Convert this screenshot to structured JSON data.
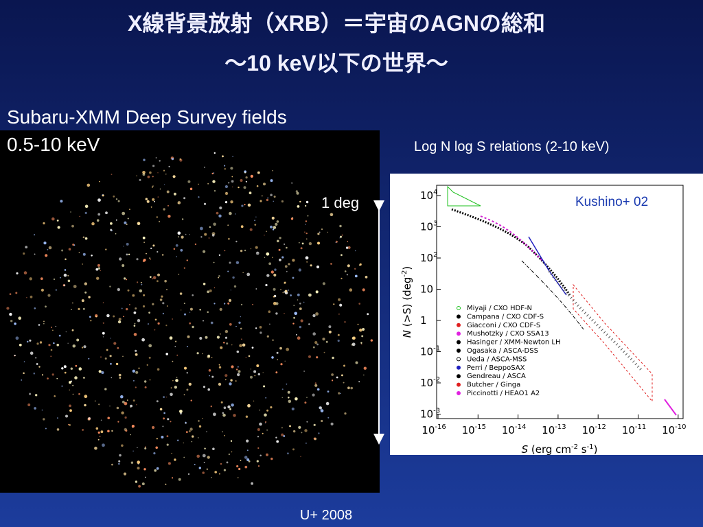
{
  "header": {
    "title": [
      "X線背景放射（XRB）＝宇宙のAGNの総和",
      "～10 keV以下の世界～"
    ]
  },
  "image": {
    "caption": [
      "Subaru-XMM Deep Survey fields",
      "0.5-10 keV"
    ],
    "scale": "1 deg"
  },
  "figure": {
    "caption": "Log N log S relations (2-10 keV)",
    "annotation": "Kushino+ 02",
    "ylabel": {
      "var": "N",
      "rest": " (>S) (deg",
      "exp": "-2",
      "close": ")"
    },
    "xlabel": {
      "var": "S",
      "rest": " (erg cm",
      "exp1": "-2",
      "mid": " s",
      "exp2": "-1",
      "close": ")"
    },
    "yticks": [
      {
        "base": "10",
        "exp": "4"
      },
      {
        "base": "10",
        "exp": "3"
      },
      {
        "base": "10",
        "exp": "2"
      },
      {
        "base": "10",
        "exp": ""
      },
      {
        "base": "1",
        "exp": ""
      },
      {
        "base": "10",
        "exp": "-1"
      },
      {
        "base": "10",
        "exp": "-2"
      },
      {
        "base": "10",
        "exp": "-3"
      }
    ],
    "xticks": [
      {
        "base": "10",
        "exp": "-16"
      },
      {
        "base": "10",
        "exp": "-15"
      },
      {
        "base": "10",
        "exp": "-14"
      },
      {
        "base": "10",
        "exp": "-13"
      },
      {
        "base": "10",
        "exp": "-12"
      },
      {
        "base": "10",
        "exp": "-11"
      },
      {
        "base": "10",
        "exp": "-10"
      }
    ],
    "legend": [
      "Miyaji / CXO HDF-N",
      "Campana / CXO CDF-S",
      "Giacconi / CXO CDF-S",
      "Mushotzky / CXO SSA13",
      "Hasinger / XMM-Newton LH",
      "Ogasaka / ASCA-DSS",
      "Ueda / ASCA-MSS",
      "Perri / BeppoSAX",
      "Gendreau / ASCA",
      "Butcher / Ginga",
      "Piccinotti / HEAO1 A2"
    ]
  },
  "footer": "U+ 2008"
}
